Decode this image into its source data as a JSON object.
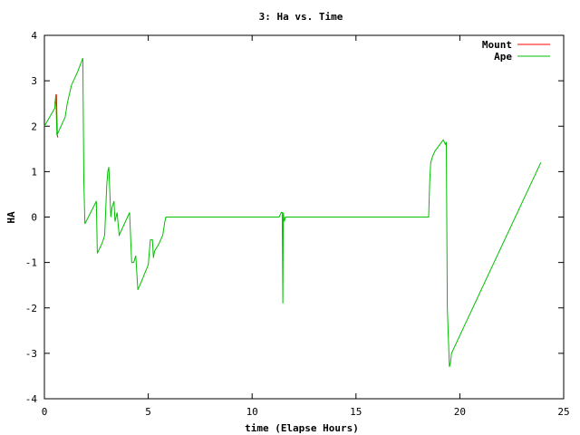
{
  "chart_data": {
    "type": "line",
    "title": "3: Ha vs. Time",
    "xlabel": "time (Elapse Hours)",
    "ylabel": "HA",
    "xlim": [
      0,
      25
    ],
    "ylim": [
      -4,
      4
    ],
    "xticks": [
      0,
      5,
      10,
      15,
      20,
      25
    ],
    "yticks": [
      -4,
      -3,
      -2,
      -1,
      0,
      1,
      2,
      3,
      4
    ],
    "grid": false,
    "legend_position": "top-right",
    "series": [
      {
        "name": "Mount",
        "color": "#ff0000",
        "x": [
          0.5,
          0.58,
          0.62,
          0.65
        ],
        "y": [
          2.5,
          2.7,
          1.8,
          1.75
        ]
      },
      {
        "name": "Ape",
        "color": "#00c000",
        "x": [
          0,
          0.5,
          0.55,
          0.6,
          0.7,
          1.0,
          1.1,
          1.3,
          1.6,
          1.85,
          1.9,
          1.95,
          2.5,
          2.55,
          2.8,
          2.9,
          3.0,
          3.05,
          3.1,
          3.2,
          3.25,
          3.35,
          3.4,
          3.5,
          3.6,
          3.7,
          4.1,
          4.2,
          4.3,
          4.4,
          4.5,
          4.6,
          5.0,
          5.1,
          5.2,
          5.25,
          5.3,
          5.5,
          5.7,
          5.8,
          5.85,
          6.0,
          11.3,
          11.4,
          11.45,
          11.48,
          11.5,
          11.55,
          11.6,
          11.7,
          18.5,
          18.55,
          18.6,
          18.7,
          18.8,
          19.2,
          19.3,
          19.35,
          19.4,
          19.5,
          19.55,
          19.6,
          23.9
        ],
        "y": [
          2.0,
          2.4,
          2.7,
          1.8,
          1.9,
          2.2,
          2.5,
          2.9,
          3.2,
          3.5,
          0.8,
          -0.15,
          0.35,
          -0.8,
          -0.55,
          -0.4,
          0.7,
          1.0,
          1.1,
          0.0,
          0.2,
          0.35,
          -0.1,
          0.1,
          -0.4,
          -0.3,
          0.1,
          -1.0,
          -1.0,
          -0.85,
          -1.6,
          -1.5,
          -1.05,
          -0.5,
          -0.5,
          -0.9,
          -0.75,
          -0.6,
          -0.4,
          -0.1,
          0.0,
          0.0,
          0.0,
          0.1,
          0.1,
          -1.9,
          0.1,
          -0.1,
          0.0,
          0.0,
          0.0,
          0.8,
          1.2,
          1.35,
          1.45,
          1.7,
          1.6,
          1.65,
          -2.0,
          -3.3,
          -3.2,
          -3.0,
          1.2
        ]
      }
    ]
  }
}
